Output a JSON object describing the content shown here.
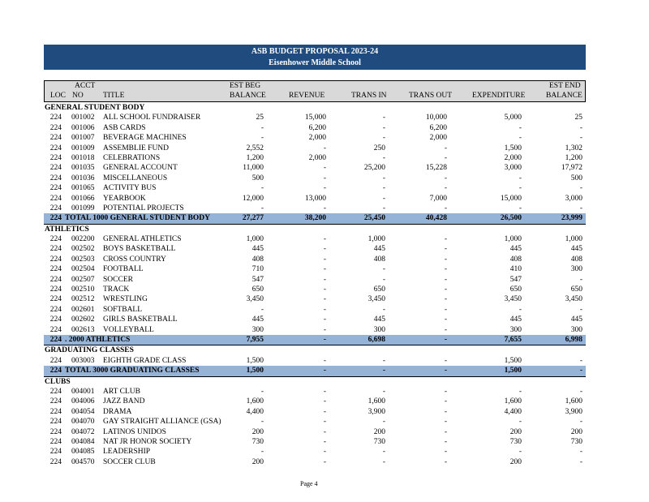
{
  "banner": {
    "line1": "ASB BUDGET  PROPOSAL  2023-24",
    "line2": "Eisenhower     Middle    School"
  },
  "headers": {
    "acct_top": "ACCT",
    "loc": "LOC",
    "no": "NO",
    "title": "TITLE",
    "beg_top": "EST BEG",
    "beg_bot": "BALANCE",
    "revenue": "REVENUE",
    "trans_in": "TRANS IN",
    "trans_out": "TRANS OUT",
    "expenditure": "EXPENDITURE",
    "end_top": "EST END",
    "end_bot": "BALANCE"
  },
  "rows": [
    {
      "type": "section",
      "label": "GENERAL STUDENT BODY"
    },
    {
      "type": "row",
      "loc": "224",
      "acct": "001002",
      "title": "ALL SCHOOL FUNDRAISER",
      "beg": "25",
      "rev": "15,000",
      "tin": "-",
      "tout": "10,000",
      "exp": "5,000",
      "end": "25"
    },
    {
      "type": "row",
      "loc": "224",
      "acct": "001006",
      "title": "ASB CARDS",
      "beg": "-",
      "rev": "6,200",
      "tin": "-",
      "tout": "6,200",
      "exp": "-",
      "end": "-"
    },
    {
      "type": "row",
      "loc": "224",
      "acct": "001007",
      "title": "BEVERAGE MACHINES",
      "beg": "-",
      "rev": "2,000",
      "tin": "-",
      "tout": "2,000",
      "exp": "-",
      "end": "-"
    },
    {
      "type": "row",
      "loc": "224",
      "acct": "001009",
      "title": "ASSEMBLIE FUND",
      "beg": "2,552",
      "rev": "-",
      "tin": "250",
      "tout": "-",
      "exp": "1,500",
      "end": "1,302"
    },
    {
      "type": "row",
      "loc": "224",
      "acct": "001018",
      "title": "CELEBRATIONS",
      "beg": "1,200",
      "rev": "2,000",
      "tin": "-",
      "tout": "-",
      "exp": "2,000",
      "end": "1,200"
    },
    {
      "type": "row",
      "loc": "224",
      "acct": "001035",
      "title": "GENERAL ACCOUNT",
      "beg": "11,000",
      "rev": "-",
      "tin": "25,200",
      "tout": "15,228",
      "exp": "3,000",
      "end": "17,972"
    },
    {
      "type": "row",
      "loc": "224",
      "acct": "001036",
      "title": "MISCELLANEOUS",
      "beg": "500",
      "rev": "-",
      "tin": "-",
      "tout": "-",
      "exp": "-",
      "end": "500"
    },
    {
      "type": "row",
      "loc": "224",
      "acct": "001065",
      "title": "ACTIVITY BUS",
      "beg": "-",
      "rev": "-",
      "tin": "-",
      "tout": "-",
      "exp": "-",
      "end": "-"
    },
    {
      "type": "row",
      "loc": "224",
      "acct": "001066",
      "title": "YEARBOOK",
      "beg": "12,000",
      "rev": "13,000",
      "tin": "-",
      "tout": "7,000",
      "exp": "15,000",
      "end": "3,000"
    },
    {
      "type": "row",
      "loc": "224",
      "acct": "001099",
      "title": "POTENTIAL PROJECTS",
      "beg": "-",
      "rev": "-",
      "tin": "-",
      "tout": "-",
      "exp": "-",
      "end": "-"
    },
    {
      "type": "total",
      "loc": "224",
      "title": "TOTAL 1000 GENERAL STUDENT BODY",
      "beg": "27,277",
      "rev": "38,200",
      "tin": "25,450",
      "tout": "40,428",
      "exp": "26,500",
      "end": "23,999"
    },
    {
      "type": "section",
      "label": "ATHLETICS"
    },
    {
      "type": "row",
      "loc": "224",
      "acct": "002200",
      "title": "GENERAL ATHLETICS",
      "beg": "1,000",
      "rev": "-",
      "tin": "1,000",
      "tout": "-",
      "exp": "1,000",
      "end": "1,000"
    },
    {
      "type": "row",
      "loc": "224",
      "acct": "002502",
      "title": "BOYS BASKETBALL",
      "beg": "445",
      "rev": "-",
      "tin": "445",
      "tout": "-",
      "exp": "445",
      "end": "445"
    },
    {
      "type": "row",
      "loc": "224",
      "acct": "002503",
      "title": "CROSS COUNTRY",
      "beg": "408",
      "rev": "-",
      "tin": "408",
      "tout": "-",
      "exp": "408",
      "end": "408"
    },
    {
      "type": "row",
      "loc": "224",
      "acct": "002504",
      "title": "FOOTBALL",
      "beg": "710",
      "rev": "-",
      "tin": "-",
      "tout": "-",
      "exp": "410",
      "end": "300"
    },
    {
      "type": "row",
      "loc": "224",
      "acct": "002507",
      "title": "SOCCER",
      "beg": "547",
      "rev": "-",
      "tin": "-",
      "tout": "-",
      "exp": "547",
      "end": "-"
    },
    {
      "type": "row",
      "loc": "224",
      "acct": "002510",
      "title": "TRACK",
      "beg": "650",
      "rev": "-",
      "tin": "650",
      "tout": "-",
      "exp": "650",
      "end": "650"
    },
    {
      "type": "row",
      "loc": "224",
      "acct": "002512",
      "title": "WRESTLING",
      "beg": "3,450",
      "rev": "-",
      "tin": "3,450",
      "tout": "-",
      "exp": "3,450",
      "end": "3,450"
    },
    {
      "type": "row",
      "loc": "224",
      "acct": "002601",
      "title": "SOFTBALL",
      "beg": "-",
      "rev": "-",
      "tin": "-",
      "tout": "-",
      "exp": "-",
      "end": "-"
    },
    {
      "type": "row",
      "loc": "224",
      "acct": "002602",
      "title": "GIRLS BASKETBALL",
      "beg": "445",
      "rev": "-",
      "tin": "445",
      "tout": "-",
      "exp": "445",
      "end": "445"
    },
    {
      "type": "row",
      "loc": "224",
      "acct": "002613",
      "title": "VOLLEYBALL",
      "beg": "300",
      "rev": "-",
      "tin": "300",
      "tout": "-",
      "exp": "300",
      "end": "300"
    },
    {
      "type": "total",
      "loc": "224",
      "title": ". 2000 ATHLETICS",
      "beg": "7,955",
      "rev": "-",
      "tin": "6,698",
      "tout": "-",
      "exp": "7,655",
      "end": "6,998"
    },
    {
      "type": "section",
      "label": "GRADUATING CLASSES"
    },
    {
      "type": "row",
      "loc": "224",
      "acct": "003003",
      "title": "EIGHTH GRADE CLASS",
      "beg": "1,500",
      "rev": "-",
      "tin": "-",
      "tout": "-",
      "exp": "1,500",
      "end": "-"
    },
    {
      "type": "total",
      "loc": "224",
      "title": "TOTAL 3000 GRADUATING CLASSES",
      "beg": "1,500",
      "rev": "-",
      "tin": "-",
      "tout": "-",
      "exp": "1,500",
      "end": "-"
    },
    {
      "type": "section",
      "label": "CLUBS"
    },
    {
      "type": "row",
      "loc": "224",
      "acct": "004001",
      "title": "ART CLUB",
      "beg": "-",
      "rev": "-",
      "tin": "-",
      "tout": "-",
      "exp": "-",
      "end": "-"
    },
    {
      "type": "row",
      "loc": "224",
      "acct": "004006",
      "title": "JAZZ BAND",
      "beg": "1,600",
      "rev": "-",
      "tin": "1,600",
      "tout": "-",
      "exp": "1,600",
      "end": "1,600"
    },
    {
      "type": "row",
      "loc": "224",
      "acct": "004054",
      "title": "DRAMA",
      "beg": "4,400",
      "rev": "-",
      "tin": "3,900",
      "tout": "-",
      "exp": "4,400",
      "end": "3,900"
    },
    {
      "type": "row",
      "loc": "224",
      "acct": "004070",
      "title": "GAY STRAIGHT ALLIANCE (GSA)",
      "beg": "-",
      "rev": "-",
      "tin": "-",
      "tout": "-",
      "exp": "-",
      "end": "-"
    },
    {
      "type": "row",
      "loc": "224",
      "acct": "004072",
      "title": "LATINOS UNIDOS",
      "beg": "200",
      "rev": "-",
      "tin": "200",
      "tout": "-",
      "exp": "200",
      "end": "200"
    },
    {
      "type": "row",
      "loc": "224",
      "acct": "004084",
      "title": "NAT JR HONOR SOCIETY",
      "beg": "730",
      "rev": "-",
      "tin": "730",
      "tout": "-",
      "exp": "730",
      "end": "730"
    },
    {
      "type": "row",
      "loc": "224",
      "acct": "004085",
      "title": "LEADERSHIP",
      "beg": "-",
      "rev": "-",
      "tin": "-",
      "tout": "-",
      "exp": "-",
      "end": "-"
    },
    {
      "type": "row",
      "loc": "224",
      "acct": "004570",
      "title": "SOCCER CLUB",
      "beg": "200",
      "rev": "-",
      "tin": "-",
      "tout": "-",
      "exp": "200",
      "end": "-"
    }
  ],
  "footer": {
    "page": "Page     4"
  }
}
